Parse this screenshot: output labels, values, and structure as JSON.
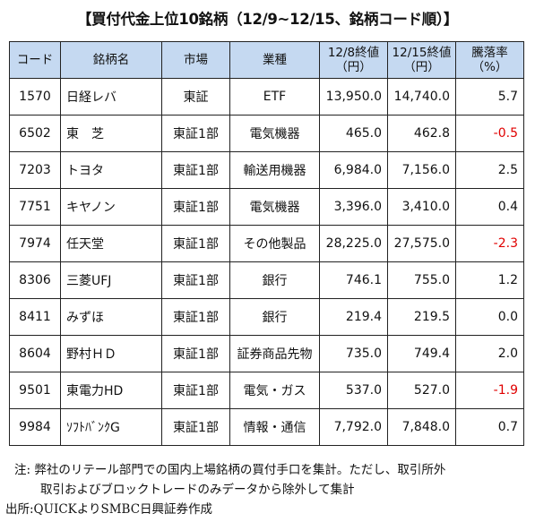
{
  "title": "【買付代金上位10銘柄（12/9~12/15、銘柄コード順）】",
  "headers": {
    "code": "コード",
    "name": "銘柄名",
    "market": "市場",
    "industry": "業種",
    "price1_l1": "12/8終値",
    "price1_l2": "（円）",
    "price2_l1": "12/15終値",
    "price2_l2": "（円）",
    "change_l1": "騰落率",
    "change_l2": "（%）"
  },
  "rows": [
    {
      "code": "1570",
      "name": "日経レバ",
      "market": "東証",
      "industry": "ETF",
      "price1": "13,950.0",
      "price2": "14,740.0",
      "change": "5.7"
    },
    {
      "code": "6502",
      "name": "東　芝",
      "market": "東証1部",
      "industry": "電気機器",
      "price1": "465.0",
      "price2": "462.8",
      "change": "-0.5"
    },
    {
      "code": "7203",
      "name": "トヨタ",
      "market": "東証1部",
      "industry": "輸送用機器",
      "price1": "6,984.0",
      "price2": "7,156.0",
      "change": "2.5"
    },
    {
      "code": "7751",
      "name": "キヤノン",
      "market": "東証1部",
      "industry": "電気機器",
      "price1": "3,396.0",
      "price2": "3,410.0",
      "change": "0.4"
    },
    {
      "code": "7974",
      "name": "任天堂",
      "market": "東証1部",
      "industry": "その他製品",
      "price1": "28,225.0",
      "price2": "27,575.0",
      "change": "-2.3"
    },
    {
      "code": "8306",
      "name": "三菱UFJ",
      "market": "東証1部",
      "industry": "銀行",
      "price1": "746.1",
      "price2": "755.0",
      "change": "1.2"
    },
    {
      "code": "8411",
      "name": "みずほ",
      "market": "東証1部",
      "industry": "銀行",
      "price1": "219.4",
      "price2": "219.5",
      "change": "0.0"
    },
    {
      "code": "8604",
      "name": "野村ＨＤ",
      "market": "東証1部",
      "industry": "証券商品先物",
      "price1": "735.0",
      "price2": "749.4",
      "change": "2.0"
    },
    {
      "code": "9501",
      "name": "東電力HD",
      "market": "東証1部",
      "industry": "電気・ガス",
      "price1": "537.0",
      "price2": "527.0",
      "change": "-1.9"
    },
    {
      "code": "9984",
      "name": "ｿﾌﾄﾊﾞﾝｸG",
      "market": "東証1部",
      "industry": "情報・通信",
      "price1": "7,792.0",
      "price2": "7,848.0",
      "change": "0.7"
    }
  ],
  "negative_color": "#e00000",
  "header_bg": "#c5d9f1",
  "notes": {
    "line1": "注:  弊社のリテール部門での国内上場銘柄の買付手口を集計。ただし、取引所外",
    "line2": "取引およびブロックトレードのみデータから除外して集計",
    "source": "出所:QUICKよりSMBC日興証券作成"
  }
}
